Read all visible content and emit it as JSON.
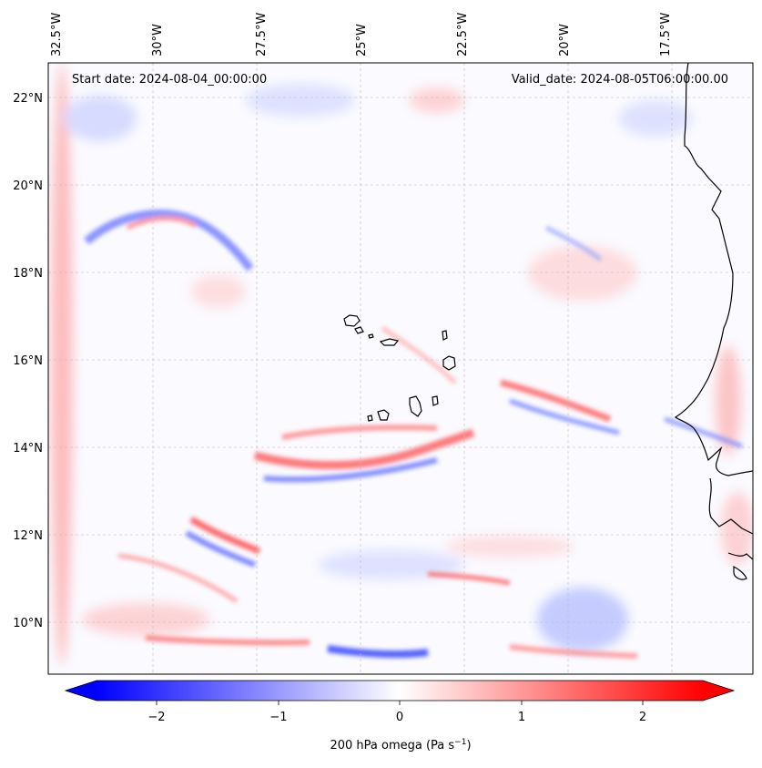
{
  "header": {
    "start_date": "Start date: 2024-08-04_00:00:00",
    "valid_date": "Valid_date: 2024-08-05T06:00:00.00"
  },
  "lon_labels": [
    "32.5°W",
    "30°W",
    "27.5°W",
    "25°W",
    "22.5°W",
    "20°W",
    "17.5°W"
  ],
  "lat_labels": [
    "22°N",
    "20°N",
    "18°N",
    "16°N",
    "14°N",
    "12°N",
    "10°N"
  ],
  "colorbar": {
    "label": "200 hPa omega (Pa s",
    "label_sup": "−1",
    "label_end": ")",
    "tick_labels": [
      "−2",
      "−1",
      "0",
      "1",
      "2"
    ],
    "range": [
      -2.5,
      2.5
    ],
    "extend": "both",
    "colormap": "bwr",
    "colors": {
      "low": "#0000ff",
      "mid": "#ffffff",
      "high": "#ff0000"
    }
  },
  "map": {
    "projection": "plate-carree",
    "lon_range": [
      "33°W",
      "16°W"
    ],
    "lat_range": [
      "8.8°N",
      "22.8°N"
    ],
    "gridlines": true,
    "coastline_color": "#000000"
  }
}
